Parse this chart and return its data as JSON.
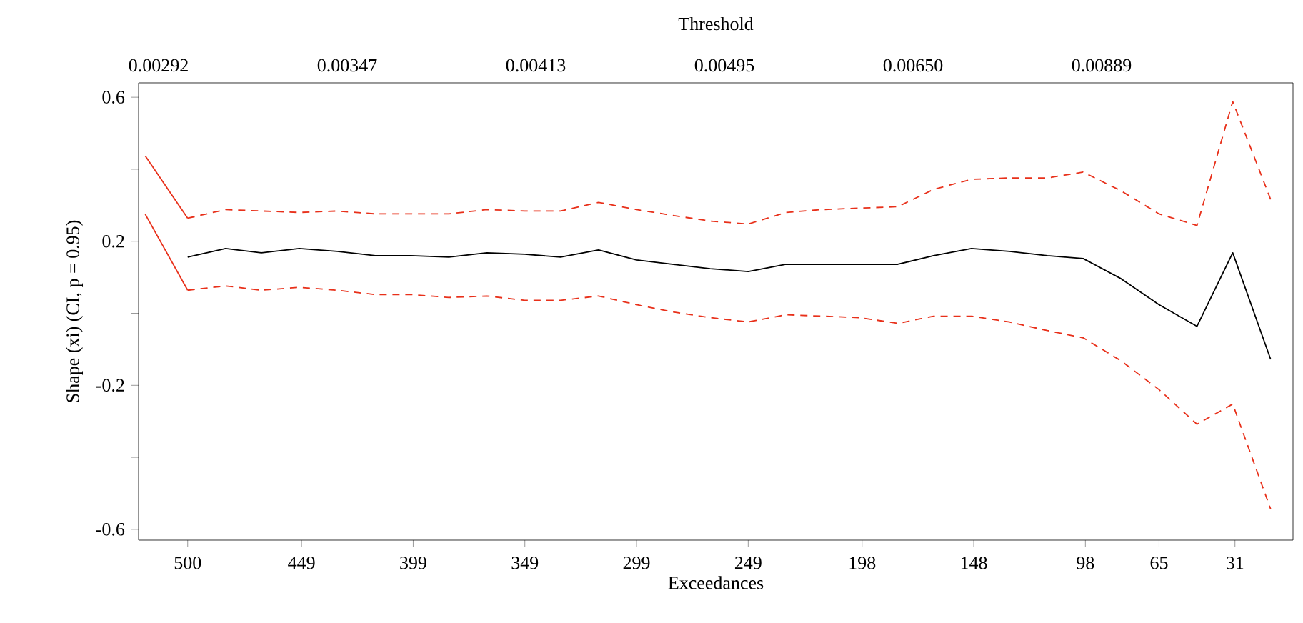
{
  "chart_data": {
    "type": "line",
    "xlabel": "Exceedances",
    "x2label": "Threshold",
    "ylabel": "Shape (xi) (CI, p = 0.95)",
    "x": [
      519,
      500,
      483,
      467,
      450,
      433,
      416,
      400,
      383,
      366,
      349,
      333,
      316,
      299,
      283,
      266,
      249,
      232,
      216,
      199,
      182,
      166,
      149,
      132,
      115,
      99,
      82,
      65,
      48,
      32,
      15
    ],
    "xlim": [
      522,
      5
    ],
    "xticks": [
      500,
      449,
      399,
      349,
      299,
      249,
      198,
      148,
      98,
      65,
      31
    ],
    "annotations": [
      "0.00292",
      "0.00347",
      "0.00413",
      "0.00495",
      "0.00650",
      "0.00889"
    ],
    "ylim": [
      -0.63,
      0.64
    ],
    "yticks": [
      {
        "value": -0.6,
        "label": "-0.6"
      },
      {
        "value": -0.4,
        "label": null
      },
      {
        "value": -0.2,
        "label": "-0.2"
      },
      {
        "value": 0,
        "label": null
      },
      {
        "value": 0.2,
        "label": "0.2"
      },
      {
        "value": 0.4,
        "label": null
      },
      {
        "value": 0.6,
        "label": "0.6"
      }
    ],
    "series": [
      {
        "color": "#000000",
        "line_style": "solid",
        "values": [
          null,
          0.156,
          0.18,
          0.168,
          0.18,
          0.172,
          0.16,
          0.16,
          0.156,
          0.168,
          0.164,
          0.156,
          0.176,
          0.148,
          0.136,
          0.124,
          0.116,
          0.136,
          0.136,
          0.136,
          0.136,
          0.16,
          0.18,
          0.172,
          0.16,
          0.152,
          0.096,
          0.024,
          -0.036,
          0.168,
          -0.128
        ]
      },
      {
        "color": "#e8301a",
        "line_style": "dashed",
        "values": [
          null,
          0.264,
          0.288,
          0.284,
          0.28,
          0.284,
          0.276,
          0.276,
          0.276,
          0.288,
          0.284,
          0.284,
          0.308,
          0.288,
          0.272,
          0.256,
          0.248,
          0.28,
          0.288,
          0.292,
          0.296,
          0.344,
          0.372,
          0.376,
          0.376,
          0.392,
          0.34,
          0.276,
          0.244,
          0.588,
          0.316
        ]
      },
      {
        "color": "#e8301a",
        "line_style": "dashed",
        "values": [
          null,
          0.064,
          0.076,
          0.064,
          0.072,
          0.064,
          0.052,
          0.052,
          0.044,
          0.048,
          0.036,
          0.036,
          0.048,
          0.024,
          0.004,
          -0.012,
          -0.024,
          -0.004,
          -0.008,
          -0.012,
          -0.028,
          -0.008,
          -0.008,
          -0.024,
          -0.048,
          -0.068,
          -0.132,
          -0.212,
          -0.308,
          -0.252,
          -0.544
        ]
      },
      {
        "color": "#e8301a",
        "line_style": "solid",
        "values": [
          0.437,
          0.264,
          null,
          null,
          null,
          null,
          null,
          null,
          null,
          null,
          null,
          null,
          null,
          null,
          null,
          null,
          null,
          null,
          null,
          null,
          null,
          null,
          null,
          null,
          null,
          null,
          null,
          null,
          null,
          null,
          null
        ]
      },
      {
        "color": "#e8301a",
        "line_style": "solid",
        "values": [
          0.275,
          0.064,
          null,
          null,
          null,
          null,
          null,
          null,
          null,
          null,
          null,
          null,
          null,
          null,
          null,
          null,
          null,
          null,
          null,
          null,
          null,
          null,
          null,
          null,
          null,
          null,
          null,
          null,
          null,
          null,
          null
        ]
      }
    ]
  }
}
